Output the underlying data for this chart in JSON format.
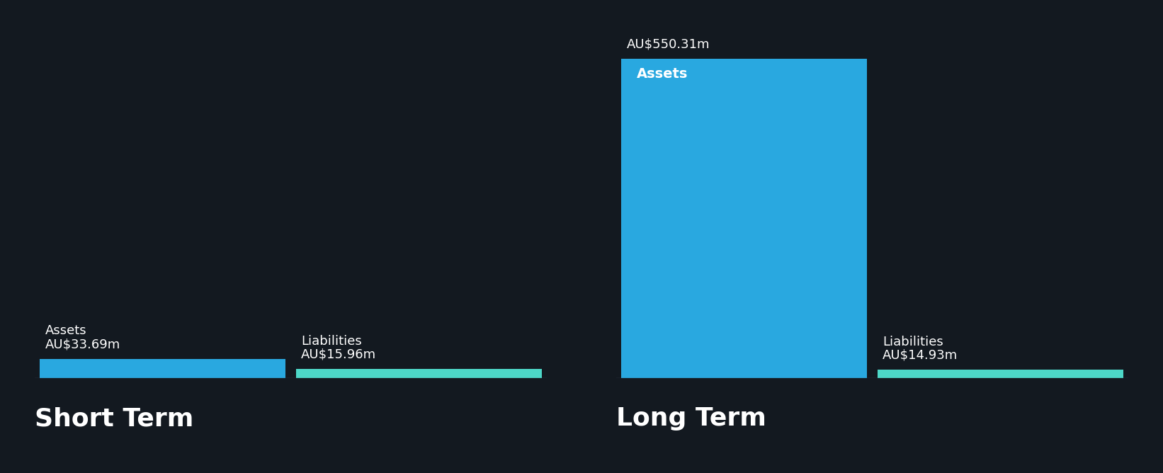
{
  "background_color": "#131920",
  "text_color": "#ffffff",
  "asset_color": "#29a8e0",
  "liability_color": "#4dd8c8",
  "short_term": {
    "label": "Short Term",
    "assets_value": 33.69,
    "assets_label": "AU$33.69m",
    "assets_category": "Assets",
    "liabilities_value": 15.96,
    "liabilities_label": "AU$15.96m",
    "liabilities_category": "Liabilities"
  },
  "long_term": {
    "label": "Long Term",
    "assets_value": 550.31,
    "assets_label": "AU$550.31m",
    "assets_category": "Assets",
    "liabilities_value": 14.93,
    "liabilities_label": "AU$14.93m",
    "liabilities_category": "Liabilities"
  },
  "max_value": 570,
  "label_fontsize": 13,
  "section_label_fontsize": 26,
  "value_label_fontsize": 13,
  "bar_label_fontsize": 13
}
